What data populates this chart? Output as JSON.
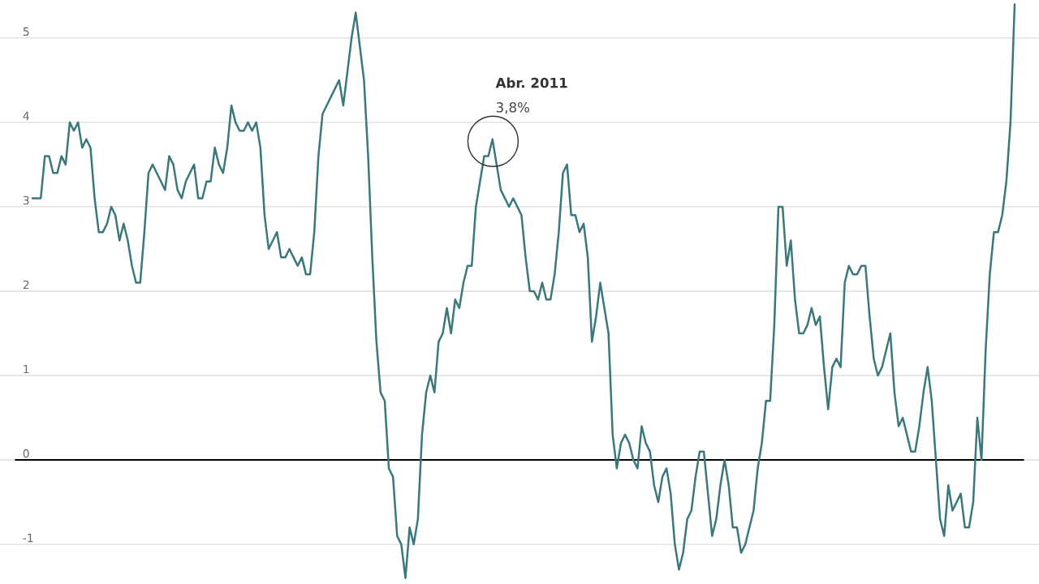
{
  "chart_data": {
    "type": "line",
    "categories": [
      null,
      null,
      null,
      null,
      null,
      null,
      null,
      null,
      null,
      null,
      null,
      null,
      null,
      null,
      null,
      null,
      null,
      null,
      null,
      null,
      null,
      null,
      null,
      null,
      null,
      null,
      null,
      null,
      null,
      null,
      null,
      null,
      null,
      null,
      null,
      null,
      null,
      null,
      null,
      null,
      null,
      null,
      null,
      null,
      null,
      null,
      null,
      null,
      null,
      null,
      null,
      null,
      null,
      null,
      null,
      null,
      null,
      null,
      null,
      null,
      null,
      null,
      null,
      null,
      null,
      null,
      null,
      null,
      null,
      null,
      null,
      null,
      null,
      null,
      null,
      null,
      null,
      null,
      null,
      null,
      null,
      null,
      null,
      null,
      null,
      null,
      null,
      null,
      null,
      null,
      null,
      null,
      null,
      null,
      null,
      null,
      null,
      null,
      null,
      null,
      null,
      null,
      null,
      null,
      null,
      null,
      null,
      null,
      null,
      null,
      null,
      null,
      null,
      null,
      null,
      null,
      null,
      null,
      null,
      null,
      null,
      null,
      null,
      null,
      null,
      null,
      null,
      null,
      null,
      null,
      null,
      null,
      null,
      null,
      null,
      null,
      null,
      null,
      null,
      null,
      null,
      null,
      null,
      null,
      null,
      null,
      null,
      null,
      null,
      null,
      null,
      null,
      null,
      null,
      null,
      null,
      null,
      null,
      null,
      null,
      null,
      null,
      null,
      null,
      null,
      null,
      null,
      null,
      null,
      null,
      null,
      null,
      null,
      null,
      null,
      null,
      null,
      null,
      null,
      null,
      null,
      null,
      null,
      null,
      null,
      null,
      null,
      null,
      null,
      null,
      null,
      null,
      null,
      null,
      null,
      null,
      null,
      null,
      null,
      null,
      null,
      null,
      null,
      null,
      null,
      null,
      null,
      null,
      null,
      null,
      null,
      null,
      null,
      null,
      null,
      null,
      null,
      null,
      null,
      null,
      null,
      null,
      null,
      null,
      null,
      null,
      null,
      null,
      null,
      null,
      null,
      null,
      null,
      null,
      null,
      null,
      null,
      null
    ],
    "series": [
      {
        "color": "#3a787c",
        "values": [
          3.1,
          3.1,
          3.1,
          3.6,
          3.6,
          3.4,
          3.4,
          3.6,
          3.5,
          4.0,
          3.9,
          4.0,
          3.7,
          3.8,
          3.7,
          3.1,
          2.7,
          2.7,
          2.8,
          3.0,
          2.9,
          2.6,
          2.8,
          2.6,
          2.3,
          2.1,
          2.1,
          2.7,
          3.4,
          3.5,
          3.4,
          3.3,
          3.2,
          3.6,
          3.5,
          3.2,
          3.1,
          3.3,
          3.4,
          3.5,
          3.1,
          3.1,
          3.3,
          3.3,
          3.7,
          3.5,
          3.4,
          3.7,
          4.2,
          4.0,
          3.9,
          3.9,
          4.0,
          3.9,
          4.0,
          3.7,
          2.9,
          2.5,
          2.6,
          2.7,
          2.4,
          2.4,
          2.5,
          2.4,
          2.3,
          2.4,
          2.2,
          2.2,
          2.7,
          3.6,
          4.1,
          4.2,
          4.3,
          4.4,
          4.5,
          4.2,
          4.6,
          5.0,
          5.3,
          4.9,
          4.5,
          3.6,
          2.4,
          1.4,
          0.8,
          0.7,
          -0.1,
          -0.2,
          -0.9,
          -1.0,
          -1.4,
          -0.8,
          -1.0,
          -0.7,
          0.3,
          0.8,
          1.0,
          0.8,
          1.4,
          1.5,
          1.8,
          1.5,
          1.9,
          1.8,
          2.1,
          2.3,
          2.3,
          3.0,
          3.3,
          3.6,
          3.6,
          3.8,
          3.5,
          3.2,
          3.1,
          3.0,
          3.1,
          3.0,
          2.9,
          2.4,
          2.0,
          2.0,
          1.9,
          2.1,
          1.9,
          1.9,
          2.2,
          2.7,
          3.4,
          3.5,
          2.9,
          2.9,
          2.7,
          2.8,
          2.4,
          1.4,
          1.7,
          2.1,
          1.8,
          1.5,
          0.3,
          -0.1,
          0.2,
          0.3,
          0.2,
          0.0,
          -0.1,
          0.4,
          0.2,
          0.1,
          -0.3,
          -0.5,
          -0.2,
          -0.1,
          -0.4,
          -1.0,
          -1.3,
          -1.1,
          -0.7,
          -0.6,
          -0.2,
          0.1,
          0.1,
          -0.4,
          -0.9,
          -0.7,
          -0.3,
          0.0,
          -0.3,
          -0.8,
          -0.8,
          -1.1,
          -1.0,
          -0.8,
          -0.6,
          -0.1,
          0.2,
          0.7,
          0.7,
          1.6,
          3.0,
          3.0,
          2.3,
          2.6,
          1.9,
          1.5,
          1.5,
          1.6,
          1.8,
          1.6,
          1.7,
          1.1,
          0.6,
          1.1,
          1.2,
          1.1,
          2.1,
          2.3,
          2.2,
          2.2,
          2.3,
          2.3,
          1.7,
          1.2,
          1.0,
          1.1,
          1.3,
          1.5,
          0.8,
          0.4,
          0.5,
          0.3,
          0.1,
          0.1,
          0.4,
          0.8,
          1.1,
          0.7,
          0.0,
          -0.7,
          -0.9,
          -0.3,
          -0.6,
          -0.5,
          -0.4,
          -0.8,
          -0.8,
          -0.5,
          0.5,
          0.0,
          1.3,
          2.2,
          2.7,
          2.7,
          2.9,
          3.3,
          4.0,
          5.4
        ]
      }
    ],
    "ylim": [
      -1.47,
      5.45
    ],
    "yticks": [
      -1,
      0,
      1,
      2,
      3,
      4,
      5
    ],
    "grid": "y",
    "ref_lines": [
      {
        "axis": "y",
        "value": 0,
        "color": "#000000"
      }
    ],
    "annotations": [
      "Abr. 2011",
      "3,8%"
    ]
  }
}
